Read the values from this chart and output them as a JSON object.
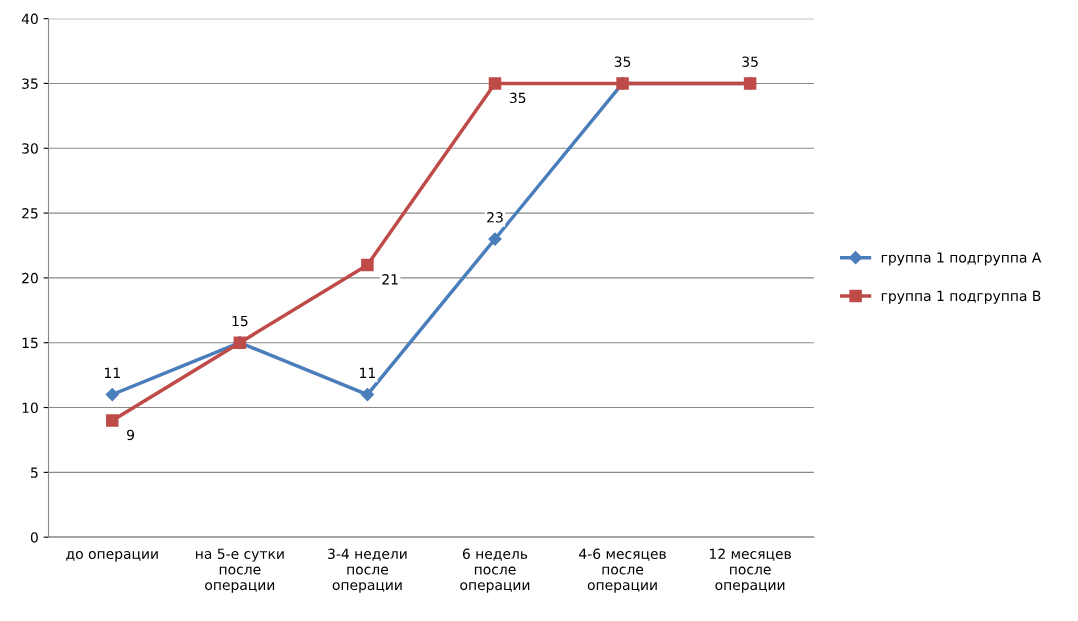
{
  "chart_data": {
    "type": "line",
    "categories": [
      "до операции",
      "на 5-е сутки\nпосле\nоперации",
      "3-4 недели\nпосле\nоперации",
      "6 недель\nпосле\nоперации",
      "4-6 месяцев\nпосле\nоперации",
      "12 месяцев\nпосле\nоперации"
    ],
    "series": [
      {
        "name": "группа 1 подгруппа A",
        "color": "#4a7ebb",
        "marker": "diamond",
        "values": [
          11,
          15,
          11,
          23,
          35,
          35
        ],
        "value_labels": [
          "11",
          "15",
          "11",
          "23",
          "35",
          "35"
        ]
      },
      {
        "name": "группа 1 подгруппа B",
        "color": "#be4b48",
        "marker": "square",
        "values": [
          9,
          15,
          21,
          35,
          35,
          35
        ],
        "value_labels": [
          "9",
          null,
          "21",
          "35",
          null,
          null
        ]
      }
    ],
    "ylim": [
      0,
      40
    ],
    "yticks": [
      0,
      5,
      10,
      15,
      20,
      25,
      30,
      35,
      40
    ],
    "grid": "y",
    "legend": "right",
    "line_style": "solid"
  }
}
